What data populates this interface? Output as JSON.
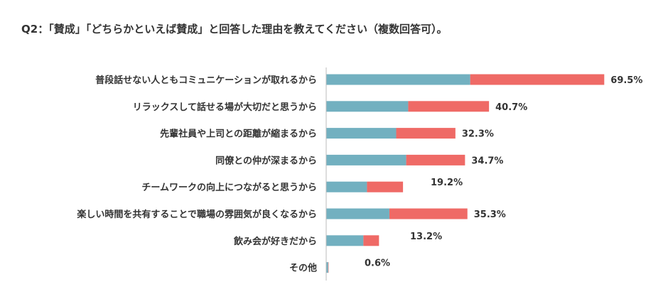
{
  "title": "Q2：「賛成」「どちらかといえば賛成」と回答した理由を教えてください（複数回答可）。",
  "chart_data": {
    "type": "bar",
    "orientation": "horizontal",
    "stacked": true,
    "title": "Q2：「賛成」「どちらかといえば賛成」と回答した理由を教えてください（複数回答可）。",
    "categories": [
      "普段話せない人ともコミュニケーションが取れるから",
      "リラックスして話せる場が大切だと思うから",
      "先輩社員や上司との距離が縮まるから",
      "同僚との仲が深まるから",
      "チームワークの向上につながると思うから",
      "楽しい時間を共有することで職場の雰囲気が良くなるから",
      "飲み会が好きだから",
      "その他"
    ],
    "series": [
      {
        "color": "#72b0c0",
        "values": [
          36.0,
          20.5,
          17.5,
          20.0,
          10.2,
          15.8,
          9.3,
          0.5
        ]
      },
      {
        "color": "#ef6a66",
        "values": [
          33.5,
          20.2,
          14.8,
          14.7,
          9.0,
          19.5,
          3.9,
          0.1
        ]
      }
    ],
    "totals": [
      "69.5%",
      "40.7%",
      "32.3%",
      "34.7%",
      "19.2%",
      "35.3%",
      "13.2%",
      "0.6%"
    ],
    "xlim": [
      0,
      100
    ],
    "grid": false,
    "legend": "none"
  }
}
